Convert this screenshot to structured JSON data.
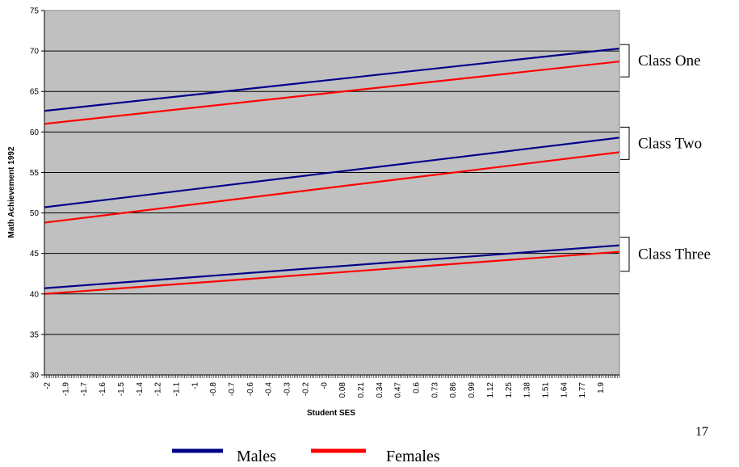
{
  "chart_data": {
    "type": "line",
    "xlabel": "Student SES",
    "ylabel": "Math Achievement 1992",
    "ylim": [
      30,
      75
    ],
    "yticks": [
      30,
      35,
      40,
      45,
      50,
      55,
      60,
      65,
      70,
      75
    ],
    "xlim": [
      -2,
      2.13
    ],
    "xtick_labels": [
      "-2",
      "-1.9",
      "-1.7",
      "-1.6",
      "-1.5",
      "-1.4",
      "-1.2",
      "-1.1",
      "-1",
      "-0.8",
      "-0.7",
      "-0.6",
      "-0.4",
      "-0.3",
      "-0.2",
      "-0",
      "0.08",
      "0.21",
      "0.34",
      "0.47",
      "0.6",
      "0.73",
      "0.86",
      "0.99",
      "1.12",
      "1.25",
      "1.38",
      "1.51",
      "1.64",
      "1.77",
      "1.9"
    ],
    "grid": true,
    "legend_placement": "bottom",
    "series": [
      {
        "name": "Males",
        "color": "#00008b",
        "x": [
          -2,
          2.13
        ],
        "values": [
          62.6,
          70.3
        ]
      },
      {
        "name": "Females",
        "color": "#ff0000",
        "x": [
          -2,
          2.13
        ],
        "values": [
          61.0,
          68.7
        ]
      },
      {
        "name": "Males",
        "color": "#00008b",
        "x": [
          -2,
          2.13
        ],
        "values": [
          50.7,
          59.3
        ]
      },
      {
        "name": "Females",
        "color": "#ff0000",
        "x": [
          -2,
          2.13
        ],
        "values": [
          48.8,
          57.5
        ]
      },
      {
        "name": "Males",
        "color": "#00008b",
        "x": [
          -2,
          2.13
        ],
        "values": [
          40.7,
          46.0
        ]
      },
      {
        "name": "Females",
        "color": "#ff0000",
        "x": [
          -2,
          2.13
        ],
        "values": [
          40.0,
          45.2
        ]
      }
    ],
    "annotations": [
      {
        "text": "Class One",
        "y_range": [
          66.8,
          70.8
        ]
      },
      {
        "text": "Class Two",
        "y_range": [
          56.6,
          60.6
        ]
      },
      {
        "text": "Class Three",
        "y_range": [
          42.8,
          47.0
        ]
      }
    ],
    "legend": [
      {
        "label": "Males",
        "color": "#00008b"
      },
      {
        "label": "Females",
        "color": "#ff0000"
      }
    ],
    "plot_background": "#c0c0c0"
  },
  "page_number": "17"
}
